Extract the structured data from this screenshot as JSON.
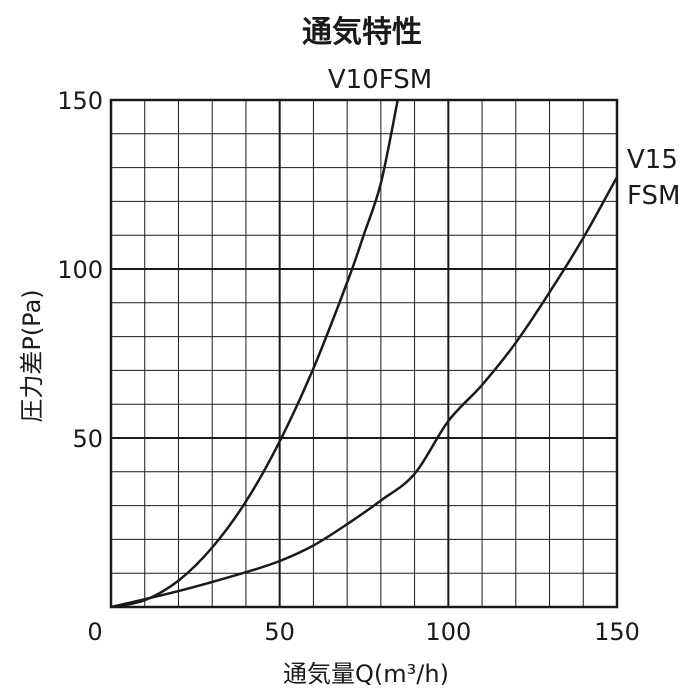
{
  "chart_data": {
    "type": "line",
    "title": "通気特性",
    "xlabel": "通気量Q(m³/h)",
    "ylabel": "圧力差P(Pa)",
    "xlim": [
      0,
      150
    ],
    "ylim": [
      0,
      150
    ],
    "x_ticks": [
      "0",
      "50",
      "100",
      "150"
    ],
    "y_ticks": [
      "50",
      "100",
      "150"
    ],
    "grid": true,
    "series": [
      {
        "name": "V10FSM",
        "label_lines": [
          "V10FSM"
        ],
        "points": [
          [
            0,
            0
          ],
          [
            10,
            2
          ],
          [
            20,
            7.8
          ],
          [
            30,
            17.6
          ],
          [
            40,
            31.2
          ],
          [
            50,
            49
          ],
          [
            60,
            70.6
          ],
          [
            70,
            96
          ],
          [
            75,
            110.3
          ],
          [
            80,
            125.4
          ],
          [
            85,
            150
          ]
        ]
      },
      {
        "name": "V15 FSM",
        "label_lines": [
          "V15",
          "FSM"
        ],
        "points": [
          [
            0,
            0
          ],
          [
            20,
            4.7
          ],
          [
            40,
            10.3
          ],
          [
            50,
            13.6
          ],
          [
            60,
            18.2
          ],
          [
            70,
            24.5
          ],
          [
            80,
            31.5
          ],
          [
            90,
            39.4
          ],
          [
            100,
            55
          ],
          [
            110,
            65.7
          ],
          [
            120,
            78.2
          ],
          [
            130,
            93.1
          ],
          [
            140,
            109.2
          ],
          [
            150,
            127.2
          ]
        ]
      }
    ]
  }
}
